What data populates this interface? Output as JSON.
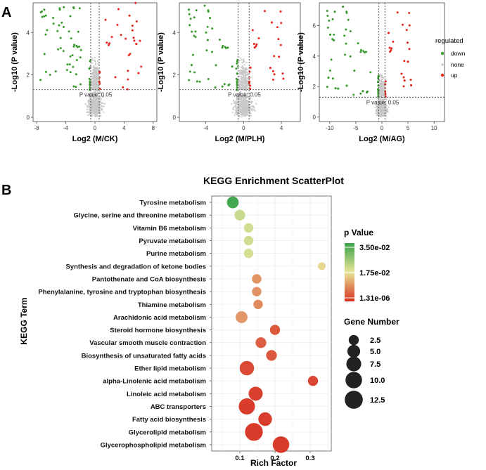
{
  "panels": {
    "a": "A",
    "b": "B"
  },
  "chart_data": [
    {
      "type": "scatter",
      "subtype": "volcano",
      "xlabel": "Log2 (M/CK)",
      "ylabel": "-Log10 (P value)",
      "xlim": [
        -8.5,
        8.5
      ],
      "ylim": [
        -0.2,
        5.4
      ],
      "xticks": [
        -8,
        -4,
        0,
        4,
        8
      ],
      "yticks": [
        0,
        2,
        4
      ],
      "threshold_label": "P value: 0.05",
      "p_threshold_neglog10": 1.3,
      "fc_threshold": 0.58,
      "x_spread": [
        -7.5,
        6.5
      ],
      "y_max": 5.4
    },
    {
      "type": "scatter",
      "subtype": "volcano",
      "xlabel": "Log2 (M/PLH)",
      "ylabel": "-Log10 (P value)",
      "xlim": [
        -6.8,
        6.0
      ],
      "ylim": [
        -0.2,
        5.4
      ],
      "xticks": [
        -4,
        0,
        4
      ],
      "yticks": [
        0,
        2,
        4
      ],
      "threshold_label": "P value: 0.05",
      "p_threshold_neglog10": 1.3,
      "fc_threshold": 0.58,
      "x_spread": [
        -5.8,
        4.5
      ],
      "y_max": 5.3
    },
    {
      "type": "scatter",
      "subtype": "volcano",
      "xlabel": "Log2 (M/AG)",
      "ylabel": "-Log10 (P value)",
      "xlim": [
        -12,
        12
      ],
      "ylim": [
        -0.3,
        7.5
      ],
      "xticks": [
        -10,
        -5,
        0,
        5,
        10
      ],
      "yticks": [
        0,
        2,
        4,
        6
      ],
      "threshold_label": "P value: 0.05",
      "p_threshold_neglog10": 1.3,
      "fc_threshold": 0.58,
      "x_spread": [
        -10.5,
        6
      ],
      "y_max": 7.3
    },
    {
      "type": "scatter",
      "subtype": "bubble",
      "title": "KEGG Enrichment ScatterPlot",
      "xlabel": "Rich Factor",
      "ylabel": "KEGG Term",
      "xlim": [
        0.02,
        0.36
      ],
      "xticks": [
        0.1,
        0.2,
        0.3
      ],
      "tick_labels": [
        "0.1",
        "0.2",
        "0.3"
      ],
      "terms": [
        {
          "term": "Tyrosine metabolism",
          "rich_factor": 0.08,
          "p_value": 0.035,
          "gene_number": 4
        },
        {
          "term": "Glycine, serine and threonine metabolism",
          "rich_factor": 0.1,
          "p_value": 0.021,
          "gene_number": 3
        },
        {
          "term": "Vitamin B6 metabolism",
          "rich_factor": 0.125,
          "p_value": 0.02,
          "gene_number": 2
        },
        {
          "term": "Pyruvate metabolism",
          "rich_factor": 0.125,
          "p_value": 0.02,
          "gene_number": 2
        },
        {
          "term": "Purine metabolism",
          "rich_factor": 0.125,
          "p_value": 0.0195,
          "gene_number": 2
        },
        {
          "term": "Synthesis and degradation of ketone bodies",
          "rich_factor": 0.333,
          "p_value": 0.016,
          "gene_number": 1
        },
        {
          "term": "Pantothenate and CoA biosynthesis",
          "rich_factor": 0.148,
          "p_value": 0.009,
          "gene_number": 2
        },
        {
          "term": "Phenylalanine, tyrosine and tryptophan biosynthesis",
          "rich_factor": 0.148,
          "p_value": 0.009,
          "gene_number": 2
        },
        {
          "term": "Thiamine metabolism",
          "rich_factor": 0.152,
          "p_value": 0.008,
          "gene_number": 2
        },
        {
          "term": "Arachidonic acid metabolism",
          "rich_factor": 0.105,
          "p_value": 0.0095,
          "gene_number": 4
        },
        {
          "term": "Steroid hormone biosynthesis",
          "rich_factor": 0.2,
          "p_value": 0.003,
          "gene_number": 2.5
        },
        {
          "term": "Vascular smooth muscle contraction",
          "rich_factor": 0.16,
          "p_value": 0.0035,
          "gene_number": 3
        },
        {
          "term": "Biosynthesis of unsaturated fatty acids",
          "rich_factor": 0.19,
          "p_value": 0.003,
          "gene_number": 3
        },
        {
          "term": "Ether lipid metabolism",
          "rich_factor": 0.12,
          "p_value": 0.0015,
          "gene_number": 7
        },
        {
          "term": "alpha-Linolenic acid metabolism",
          "rich_factor": 0.308,
          "p_value": 0.0012,
          "gene_number": 2.5
        },
        {
          "term": "Linoleic acid metabolism",
          "rich_factor": 0.145,
          "p_value": 0.0005,
          "gene_number": 6.5
        },
        {
          "term": "ABC transporters",
          "rich_factor": 0.12,
          "p_value": 0.0002,
          "gene_number": 9.5
        },
        {
          "term": "Fatty acid biosynthesis",
          "rich_factor": 0.172,
          "p_value": 0.0003,
          "gene_number": 6
        },
        {
          "term": "Glycerolipid metabolism",
          "rich_factor": 0.14,
          "p_value": 2e-05,
          "gene_number": 12
        },
        {
          "term": "Glycerophospholipid metabolism",
          "rich_factor": 0.217,
          "p_value": 1.31e-06,
          "gene_number": 10
        }
      ]
    }
  ],
  "legend_regulated": {
    "title": "regulated",
    "items": [
      {
        "label": "down",
        "color": "#3a9a2e"
      },
      {
        "label": "none",
        "color": "#bdbdbd"
      },
      {
        "label": "up",
        "color": "#e8271f"
      }
    ]
  },
  "legend_pvalue": {
    "title": "p Value",
    "labels": [
      "3.50e-02",
      "1.75e-02",
      "1.31e-06"
    ],
    "colors": [
      "#3aa34a",
      "#e8e596",
      "#d7301f"
    ]
  },
  "legend_gene": {
    "title": "Gene Number",
    "labels": [
      "2.5",
      "5.0",
      "7.5",
      "10.0",
      "12.5"
    ],
    "values": [
      2.5,
      5.0,
      7.5,
      10.0,
      12.5
    ]
  }
}
